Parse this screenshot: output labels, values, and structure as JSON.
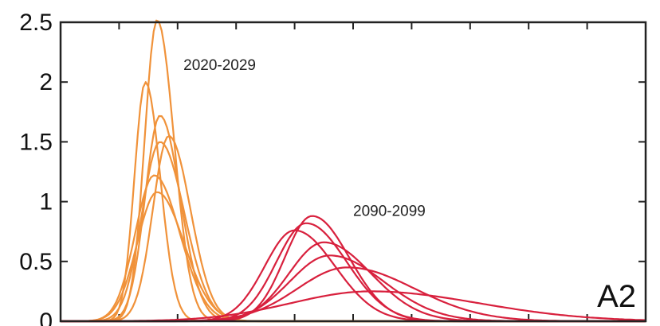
{
  "chart_data": {
    "type": "line",
    "xlim": [
      0,
      10
    ],
    "ylim": [
      0,
      2.5
    ],
    "yticks": [
      0,
      0.5,
      1,
      1.5,
      2,
      2.5
    ],
    "ytick_labels": [
      "0",
      "0.5",
      "1",
      "1.5",
      "2",
      "2.5"
    ],
    "xticks": [
      1,
      2,
      3,
      4,
      5,
      6,
      7,
      8,
      9
    ],
    "grid": false,
    "annotations": [
      {
        "text": "2020-2029",
        "x": 2.1,
        "y": 2.1
      },
      {
        "text": "2090-2099",
        "x": 5.0,
        "y": 0.88
      }
    ],
    "panel_label": "A2",
    "groups": [
      {
        "label": "2020-2029",
        "color": "#f0923a",
        "series": [
          {
            "peak_x": 1.65,
            "peak_y": 2.52,
            "width": 0.25
          },
          {
            "peak_x": 1.45,
            "peak_y": 2.0,
            "width": 0.22
          },
          {
            "peak_x": 1.7,
            "peak_y": 1.72,
            "width": 0.3
          },
          {
            "peak_x": 1.85,
            "peak_y": 1.55,
            "width": 0.32
          },
          {
            "peak_x": 1.7,
            "peak_y": 1.5,
            "width": 0.36
          },
          {
            "peak_x": 1.6,
            "peak_y": 1.22,
            "width": 0.38
          },
          {
            "peak_x": 1.65,
            "peak_y": 1.08,
            "width": 0.4
          }
        ]
      },
      {
        "label": "2090-2099",
        "color": "#d8203d",
        "series": [
          {
            "peak_x": 4.3,
            "peak_y": 0.88,
            "width": 0.55
          },
          {
            "peak_x": 4.2,
            "peak_y": 0.82,
            "width": 0.6
          },
          {
            "peak_x": 4.0,
            "peak_y": 0.76,
            "width": 0.6
          },
          {
            "peak_x": 4.5,
            "peak_y": 0.66,
            "width": 0.7
          },
          {
            "peak_x": 4.6,
            "peak_y": 0.55,
            "width": 0.8
          },
          {
            "peak_x": 4.9,
            "peak_y": 0.45,
            "width": 1.0
          },
          {
            "peak_x": 5.3,
            "peak_y": 0.25,
            "width": 1.6
          }
        ]
      }
    ]
  }
}
